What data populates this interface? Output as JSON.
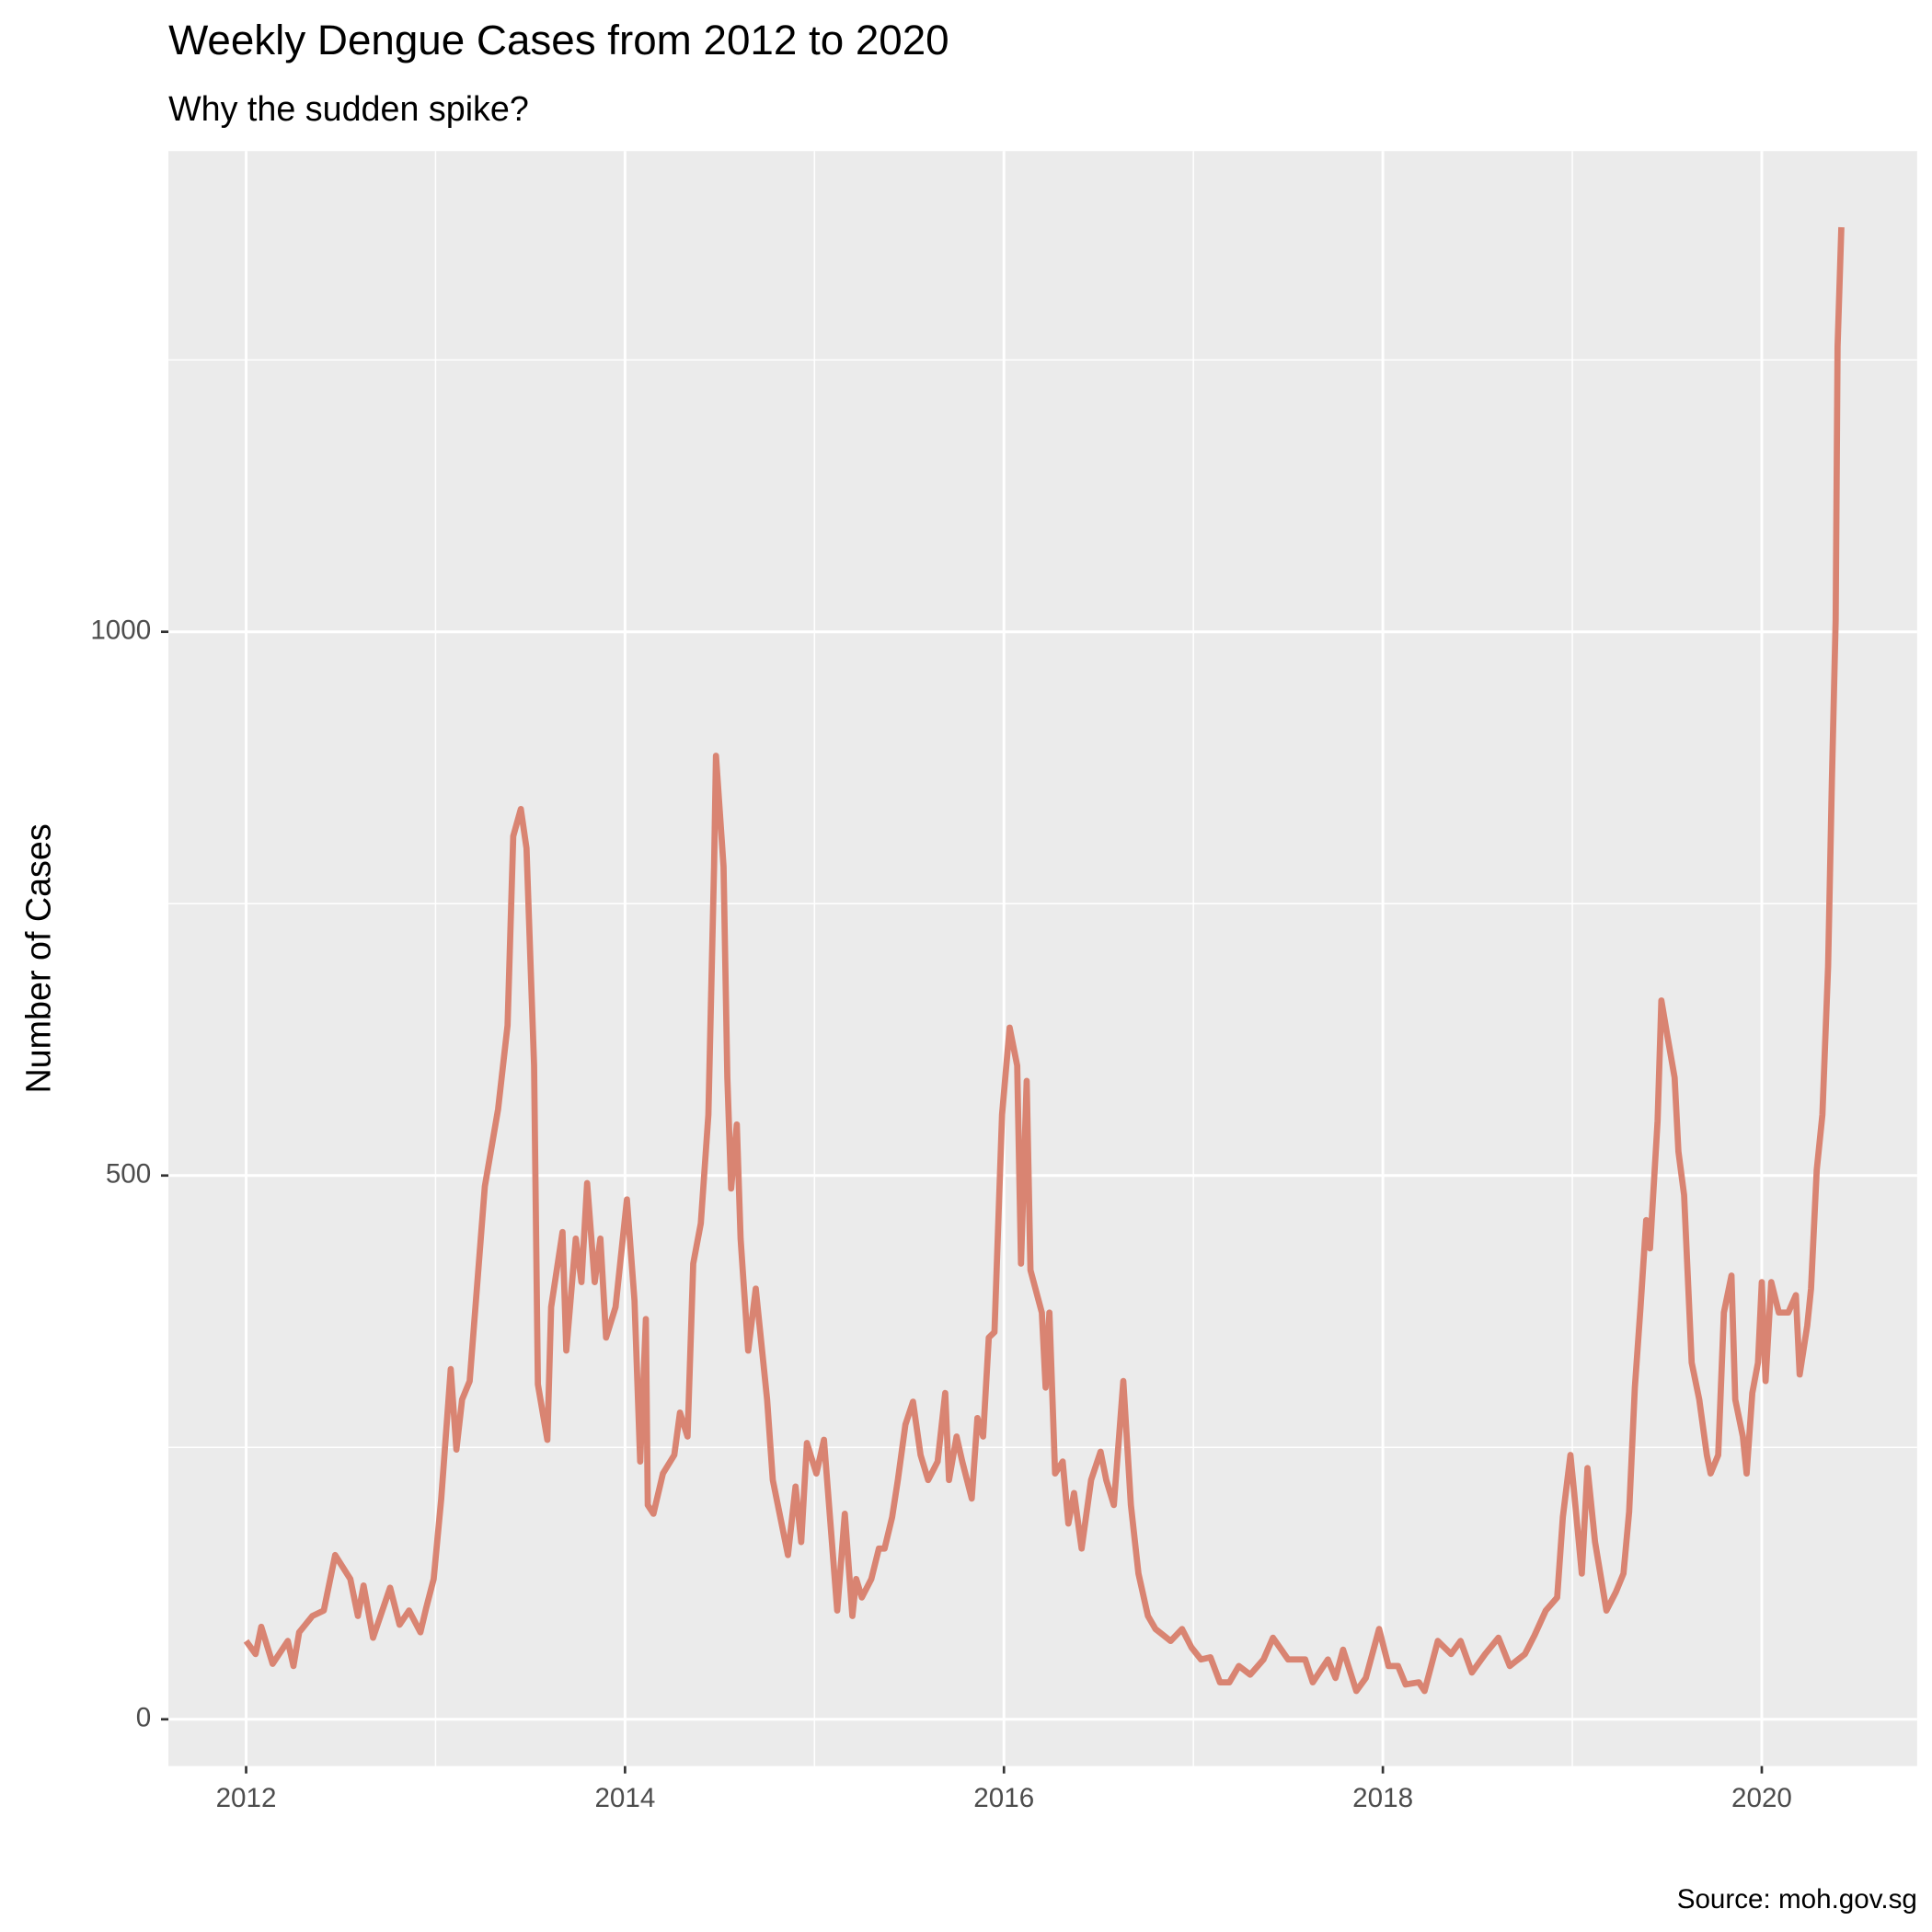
{
  "chart_data": {
    "type": "line",
    "title": "Weekly Dengue Cases from 2012 to 2020",
    "subtitle": "Why the sudden spike?",
    "y_label": "Number of Cases",
    "caption": "Source: moh.gov.sg",
    "color": "#D98472",
    "grid": true,
    "xlim": [
      2011.59,
      2020.82
    ],
    "ylim": [
      -43,
      1442
    ],
    "xticks": [
      2012,
      2014,
      2016,
      2018,
      2020
    ],
    "yticks": [
      0,
      500,
      1000
    ],
    "x_minor_ticks": [
      2013,
      2015,
      2017,
      2019
    ],
    "y_minor_ticks": [
      250,
      750,
      1250
    ],
    "x": [
      2012.0,
      2012.05,
      2012.08,
      2012.14,
      2012.22,
      2012.25,
      2012.28,
      2012.35,
      2012.41,
      2012.47,
      2012.55,
      2012.59,
      2012.62,
      2012.67,
      2012.76,
      2012.81,
      2012.86,
      2012.92,
      2012.95,
      2012.99,
      2013.03,
      2013.08,
      2013.11,
      2013.14,
      2013.18,
      2013.26,
      2013.33,
      2013.38,
      2013.41,
      2013.45,
      2013.48,
      2013.52,
      2013.54,
      2013.59,
      2013.61,
      2013.67,
      2013.69,
      2013.74,
      2013.77,
      2013.8,
      2013.84,
      2013.87,
      2013.9,
      2013.95,
      2014.01,
      2014.05,
      2014.08,
      2014.11,
      2014.12,
      2014.15,
      2014.2,
      2014.26,
      2014.29,
      2014.33,
      2014.36,
      2014.4,
      2014.44,
      2014.47,
      2014.48,
      2014.52,
      2014.54,
      2014.56,
      2014.59,
      2014.61,
      2014.65,
      2014.69,
      2014.75,
      2014.78,
      2014.86,
      2014.9,
      2014.93,
      2014.96,
      2015.01,
      2015.05,
      2015.12,
      2015.16,
      2015.2,
      2015.22,
      2015.25,
      2015.3,
      2015.34,
      2015.37,
      2015.41,
      2015.44,
      2015.48,
      2015.52,
      2015.56,
      2015.6,
      2015.65,
      2015.69,
      2015.71,
      2015.75,
      2015.78,
      2015.83,
      2015.86,
      2015.89,
      2015.92,
      2015.95,
      2015.99,
      2016.03,
      2016.07,
      2016.09,
      2016.12,
      2016.14,
      2016.2,
      2016.22,
      2016.24,
      2016.27,
      2016.31,
      2016.34,
      2016.37,
      2016.41,
      2016.46,
      2016.51,
      2016.54,
      2016.58,
      2016.63,
      2016.67,
      2016.71,
      2016.76,
      2016.8,
      2016.88,
      2016.94,
      2016.99,
      2017.04,
      2017.09,
      2017.14,
      2017.19,
      2017.24,
      2017.3,
      2017.37,
      2017.42,
      2017.5,
      2017.59,
      2017.63,
      2017.71,
      2017.75,
      2017.79,
      2017.86,
      2017.91,
      2017.98,
      2018.03,
      2018.08,
      2018.12,
      2018.19,
      2018.22,
      2018.29,
      2018.36,
      2018.41,
      2018.47,
      2018.54,
      2018.61,
      2018.67,
      2018.75,
      2018.8,
      2018.86,
      2018.92,
      2018.95,
      2018.99,
      2019.01,
      2019.05,
      2019.08,
      2019.12,
      2019.18,
      2019.23,
      2019.27,
      2019.3,
      2019.33,
      2019.36,
      2019.39,
      2019.41,
      2019.45,
      2019.47,
      2019.5,
      2019.54,
      2019.56,
      2019.59,
      2019.63,
      2019.67,
      2019.71,
      2019.73,
      2019.77,
      2019.8,
      2019.84,
      2019.86,
      2019.9,
      2019.92,
      2019.95,
      2019.98,
      2020.0,
      2020.02,
      2020.05,
      2020.09,
      2020.14,
      2020.18,
      2020.2,
      2020.24,
      2020.26,
      2020.29,
      2020.32,
      2020.35,
      2020.37,
      2020.39,
      2020.4,
      2020.42
    ],
    "values": [
      72,
      60,
      85,
      51,
      72,
      49,
      80,
      95,
      100,
      151,
      129,
      95,
      123,
      75,
      121,
      87,
      100,
      80,
      102,
      129,
      203,
      322,
      248,
      294,
      311,
      490,
      561,
      638,
      812,
      837,
      801,
      601,
      308,
      257,
      379,
      448,
      339,
      442,
      402,
      493,
      402,
      442,
      351,
      379,
      478,
      385,
      237,
      368,
      197,
      189,
      226,
      243,
      282,
      260,
      419,
      456,
      556,
      784,
      886,
      784,
      590,
      488,
      547,
      442,
      339,
      396,
      294,
      220,
      151,
      214,
      163,
      254,
      226,
      257,
      100,
      189,
      95,
      129,
      112,
      129,
      157,
      157,
      186,
      220,
      271,
      292,
      243,
      220,
      237,
      300,
      220,
      260,
      237,
      203,
      277,
      260,
      351,
      356,
      556,
      636,
      601,
      419,
      587,
      413,
      374,
      305,
      374,
      226,
      237,
      180,
      208,
      157,
      220,
      246,
      220,
      197,
      311,
      197,
      134,
      95,
      83,
      72,
      83,
      66,
      55,
      57,
      34,
      34,
      49,
      41,
      55,
      75,
      55,
      55,
      34,
      55,
      38,
      64,
      26,
      38,
      83,
      49,
      49,
      32,
      34,
      26,
      72,
      60,
      72,
      43,
      60,
      75,
      49,
      60,
      77,
      100,
      112,
      186,
      243,
      208,
      134,
      231,
      163,
      100,
      117,
      134,
      191,
      305,
      379,
      459,
      433,
      550,
      661,
      630,
      590,
      522,
      482,
      328,
      294,
      243,
      226,
      243,
      374,
      408,
      294,
      260,
      226,
      300,
      328,
      402,
      311,
      402,
      374,
      374,
      390,
      317,
      362,
      396,
      505,
      556,
      692,
      863,
      1011,
      1262,
      1372
    ]
  }
}
